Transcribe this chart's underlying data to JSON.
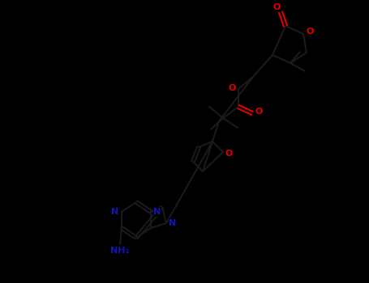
{
  "background_color": "#000000",
  "bond_color": "#1a1a1a",
  "bond_width": 1.5,
  "fig_width": 4.55,
  "fig_height": 3.5,
  "dpi": 100,
  "colors": {
    "C": "#1a1a1a",
    "N": "#1414b4",
    "O": "#e00000"
  }
}
